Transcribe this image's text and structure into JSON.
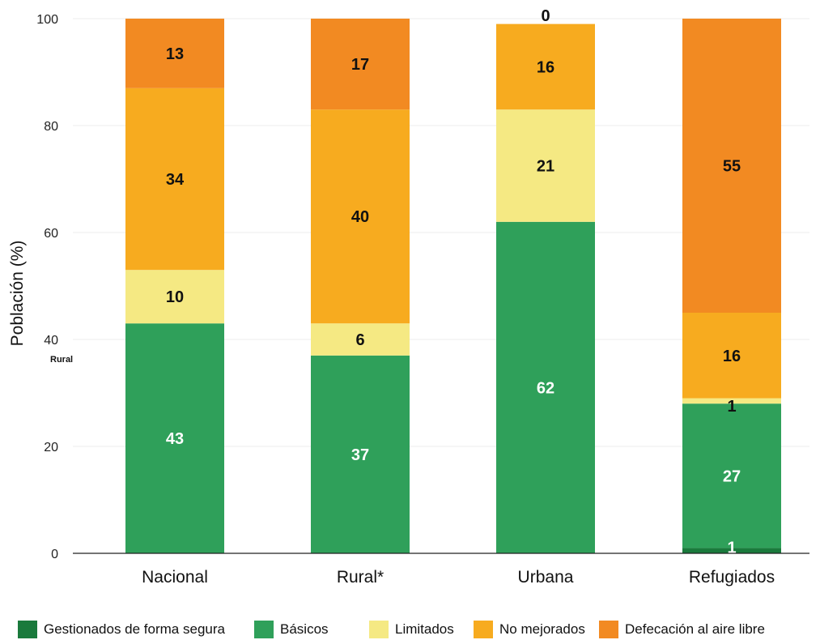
{
  "chart_data": {
    "type": "bar",
    "stacked": true,
    "title": "",
    "xlabel": "",
    "ylabel": "Población (%)",
    "ylim": [
      0,
      100
    ],
    "yticks": [
      0,
      20,
      40,
      60,
      80,
      100
    ],
    "grid": true,
    "legend_position": "bottom",
    "categories": [
      "Nacional",
      "Rural*",
      "Urbana",
      "Refugiados"
    ],
    "series": [
      {
        "name": "Gestionados de forma segura",
        "color": "#1a7a3c",
        "values": [
          0,
          0,
          0,
          1
        ],
        "labels": [
          null,
          null,
          null,
          "1"
        ]
      },
      {
        "name": "Básicos",
        "color": "#2fa05a",
        "values": [
          43,
          37,
          62,
          27
        ],
        "labels": [
          "43",
          "37",
          "62",
          "27"
        ]
      },
      {
        "name": "Limitados",
        "color": "#f5e983",
        "values": [
          10,
          6,
          21,
          1
        ],
        "labels": [
          "10",
          "6",
          "21",
          "1"
        ]
      },
      {
        "name": "No mejorados",
        "color": "#f7ab1f",
        "values": [
          34,
          40,
          16,
          16
        ],
        "labels": [
          "34",
          "40",
          "16",
          "16"
        ]
      },
      {
        "name": "Defecación al aire libre",
        "color": "#f28a22",
        "values": [
          13,
          17,
          0,
          55
        ],
        "labels": [
          "13",
          "17",
          "0",
          "55"
        ]
      }
    ],
    "label_colors": {
      "Gestionados de forma segura": "#ffffff",
      "Básicos": "#ffffff",
      "Limitados": "#111111",
      "No mejorados": "#111111",
      "Defecación al aire libre": "#111111"
    },
    "annotations": [
      "Rural"
    ]
  }
}
